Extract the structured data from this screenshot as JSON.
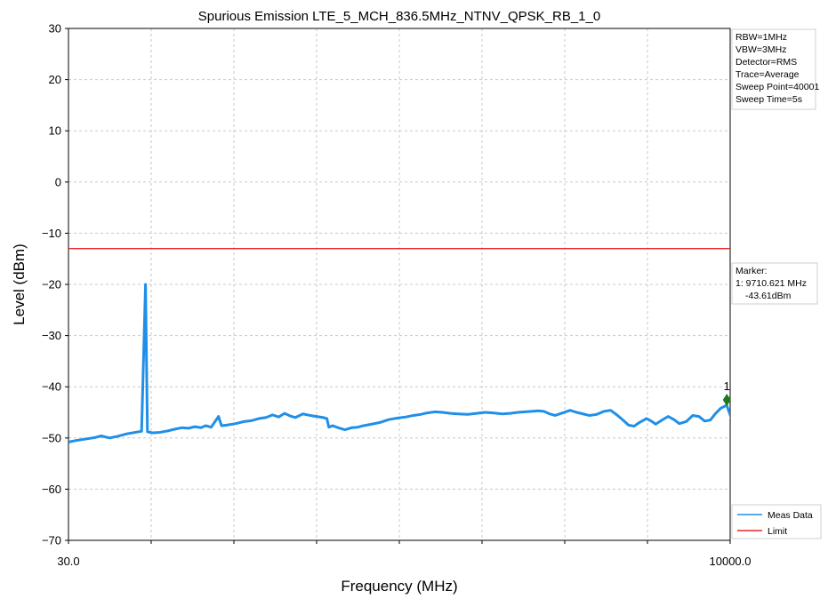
{
  "chart_data": {
    "type": "line",
    "title": "Spurious Emission LTE_5_MCH_836.5MHz_NTNV_QPSK_RB_1_0",
    "xlabel": "Frequency (MHz)",
    "ylabel": "Level (dBm)",
    "x_scale": "log",
    "xlim": [
      30.0,
      10000.0
    ],
    "ylim": [
      -70,
      30
    ],
    "x_tick_labels": [
      "30.0",
      "10000.0"
    ],
    "y_ticks": [
      30,
      20,
      10,
      0,
      -10,
      -20,
      -30,
      -40,
      -50,
      -60,
      -70
    ],
    "grid": true,
    "settings_lines": [
      "RBW=1MHz",
      "VBW=3MHz",
      "Detector=RMS",
      "Trace=Average",
      "Sweep Point=40001",
      "Sweep Time=5s"
    ],
    "marker_box_lines": [
      "Marker:",
      "1: 9710.621 MHz",
      "-43.61dBm"
    ],
    "marker": {
      "label": "1",
      "freq_mhz": 9710.621,
      "level_dbm": -43.61
    },
    "legend_position": "bottom-right",
    "colors": {
      "meas": "#1f8fe8",
      "limit": "#e8262a",
      "marker": "#1b7a1b",
      "grid": "#c8c8c8"
    },
    "series": [
      {
        "name": "Meas Data",
        "points": [
          [
            30,
            -50.8
          ],
          [
            32,
            -50.5
          ],
          [
            35,
            -50.2
          ],
          [
            38,
            -49.9
          ],
          [
            40,
            -49.6
          ],
          [
            43,
            -50.0
          ],
          [
            46,
            -49.7
          ],
          [
            50,
            -49.2
          ],
          [
            54,
            -48.9
          ],
          [
            57,
            -48.7
          ],
          [
            59,
            -20.0
          ],
          [
            60,
            -48.8
          ],
          [
            63,
            -49.0
          ],
          [
            67,
            -48.9
          ],
          [
            72,
            -48.6
          ],
          [
            76,
            -48.3
          ],
          [
            81,
            -48.0
          ],
          [
            86,
            -48.1
          ],
          [
            91,
            -47.8
          ],
          [
            96,
            -48.0
          ],
          [
            100,
            -47.6
          ],
          [
            105,
            -47.9
          ],
          [
            112,
            -45.8
          ],
          [
            115,
            -47.6
          ],
          [
            120,
            -47.5
          ],
          [
            130,
            -47.2
          ],
          [
            140,
            -46.8
          ],
          [
            150,
            -46.6
          ],
          [
            160,
            -46.2
          ],
          [
            170,
            -46.0
          ],
          [
            180,
            -45.5
          ],
          [
            190,
            -45.9
          ],
          [
            200,
            -45.2
          ],
          [
            210,
            -45.7
          ],
          [
            220,
            -46.0
          ],
          [
            235,
            -45.3
          ],
          [
            250,
            -45.6
          ],
          [
            265,
            -45.8
          ],
          [
            280,
            -46.0
          ],
          [
            290,
            -46.2
          ],
          [
            295,
            -47.9
          ],
          [
            305,
            -47.6
          ],
          [
            320,
            -48.0
          ],
          [
            340,
            -48.4
          ],
          [
            360,
            -48.0
          ],
          [
            380,
            -47.9
          ],
          [
            400,
            -47.6
          ],
          [
            430,
            -47.3
          ],
          [
            460,
            -47.0
          ],
          [
            500,
            -46.4
          ],
          [
            540,
            -46.1
          ],
          [
            580,
            -45.9
          ],
          [
            620,
            -45.6
          ],
          [
            660,
            -45.4
          ],
          [
            700,
            -45.1
          ],
          [
            750,
            -44.9
          ],
          [
            800,
            -45.0
          ],
          [
            860,
            -45.2
          ],
          [
            920,
            -45.3
          ],
          [
            1000,
            -45.4
          ],
          [
            1080,
            -45.2
          ],
          [
            1160,
            -45.0
          ],
          [
            1250,
            -45.1
          ],
          [
            1350,
            -45.3
          ],
          [
            1450,
            -45.2
          ],
          [
            1550,
            -45.0
          ],
          [
            1650,
            -44.9
          ],
          [
            1750,
            -44.8
          ],
          [
            1850,
            -44.7
          ],
          [
            1950,
            -44.8
          ],
          [
            2050,
            -45.3
          ],
          [
            2150,
            -45.6
          ],
          [
            2300,
            -45.1
          ],
          [
            2450,
            -44.6
          ],
          [
            2600,
            -45.0
          ],
          [
            2750,
            -45.3
          ],
          [
            2900,
            -45.6
          ],
          [
            3100,
            -45.4
          ],
          [
            3300,
            -44.8
          ],
          [
            3500,
            -44.6
          ],
          [
            3700,
            -45.5
          ],
          [
            3900,
            -46.5
          ],
          [
            4100,
            -47.5
          ],
          [
            4300,
            -47.7
          ],
          [
            4500,
            -47.0
          ],
          [
            4800,
            -46.2
          ],
          [
            5000,
            -46.7
          ],
          [
            5200,
            -47.3
          ],
          [
            5500,
            -46.5
          ],
          [
            5800,
            -45.8
          ],
          [
            6100,
            -46.4
          ],
          [
            6400,
            -47.2
          ],
          [
            6800,
            -46.8
          ],
          [
            7200,
            -45.6
          ],
          [
            7600,
            -45.8
          ],
          [
            8000,
            -46.7
          ],
          [
            8400,
            -46.5
          ],
          [
            8800,
            -45.2
          ],
          [
            9200,
            -44.2
          ],
          [
            9700,
            -43.61
          ],
          [
            10000,
            -45.5
          ],
          [
            10200,
            -46.7
          ],
          [
            10600,
            -47.0
          ],
          [
            11000,
            -47.1
          ]
        ]
      },
      {
        "name": "Limit",
        "points": [
          [
            30,
            -13
          ],
          [
            11000,
            -13
          ]
        ]
      }
    ]
  }
}
